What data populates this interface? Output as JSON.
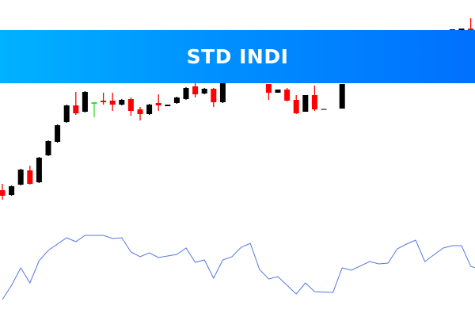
{
  "banner": {
    "title": "STD INDI"
  },
  "colors": {
    "bull": "#000000",
    "bear": "#ff0000",
    "doji": "#33dd33",
    "indicator": "#5577e6",
    "banner_start": "#00b2ff",
    "banner_end": "#0070ff"
  },
  "chart_data": [
    {
      "type": "candlestick",
      "title": "",
      "grid": false,
      "candles": [
        {
          "i": 0,
          "o": 160,
          "h": 168,
          "l": 148,
          "c": 153
        },
        {
          "i": 1,
          "o": 154,
          "h": 166,
          "l": 153,
          "c": 165
        },
        {
          "i": 2,
          "o": 167,
          "h": 187,
          "l": 166,
          "c": 186
        },
        {
          "i": 3,
          "o": 185,
          "h": 191,
          "l": 167,
          "c": 168
        },
        {
          "i": 4,
          "o": 170,
          "h": 202,
          "l": 169,
          "c": 201
        },
        {
          "i": 5,
          "o": 204,
          "h": 223,
          "l": 203,
          "c": 222
        },
        {
          "i": 6,
          "o": 221,
          "h": 243,
          "l": 220,
          "c": 242
        },
        {
          "i": 7,
          "o": 246,
          "h": 268,
          "l": 245,
          "c": 267
        },
        {
          "i": 8,
          "o": 267,
          "h": 284,
          "l": 255,
          "c": 257
        },
        {
          "i": 9,
          "o": 259,
          "h": 285,
          "l": 258,
          "c": 284
        },
        {
          "i": 10,
          "o": 271,
          "h": 271,
          "l": 252,
          "c": 271
        },
        {
          "i": 11,
          "o": 273,
          "h": 283,
          "l": 268,
          "c": 272
        },
        {
          "i": 12,
          "o": 273,
          "h": 283,
          "l": 260,
          "c": 268
        },
        {
          "i": 13,
          "o": 268,
          "h": 275,
          "l": 267,
          "c": 274
        },
        {
          "i": 14,
          "o": 275,
          "h": 277,
          "l": 254,
          "c": 260
        },
        {
          "i": 15,
          "o": 262,
          "h": 265,
          "l": 248,
          "c": 256
        },
        {
          "i": 16,
          "o": 256,
          "h": 269,
          "l": 255,
          "c": 268
        },
        {
          "i": 17,
          "o": 270,
          "h": 281,
          "l": 260,
          "c": 267
        },
        {
          "i": 18,
          "o": 266,
          "h": 268,
          "l": 266,
          "c": 268
        },
        {
          "i": 19,
          "o": 270,
          "h": 278,
          "l": 269,
          "c": 277
        },
        {
          "i": 20,
          "o": 275,
          "h": 290,
          "l": 274,
          "c": 289
        },
        {
          "i": 21,
          "o": 291,
          "h": 295,
          "l": 277,
          "c": 281
        },
        {
          "i": 22,
          "o": 282,
          "h": 289,
          "l": 281,
          "c": 288
        },
        {
          "i": 23,
          "o": 288,
          "h": 289,
          "l": 265,
          "c": 271
        },
        {
          "i": 24,
          "o": 271,
          "h": 296,
          "l": 270,
          "c": 295
        },
        {
          "i": 29,
          "o": 294,
          "h": 294,
          "l": 274,
          "c": 283
        },
        {
          "i": 30,
          "o": 283,
          "h": 287,
          "l": 283,
          "c": 287
        },
        {
          "i": 31,
          "o": 287,
          "h": 289,
          "l": 272,
          "c": 273
        },
        {
          "i": 32,
          "o": 274,
          "h": 280,
          "l": 256,
          "c": 257
        },
        {
          "i": 33,
          "o": 259,
          "h": 280,
          "l": 259,
          "c": 280
        },
        {
          "i": 34,
          "o": 280,
          "h": 292,
          "l": 260,
          "c": 262
        },
        {
          "i": 35,
          "o": 263,
          "h": 263,
          "l": 263,
          "c": 263
        },
        {
          "i": 37,
          "o": 263,
          "h": 294,
          "l": 263,
          "c": 294
        },
        {
          "i": 49,
          "o": 363,
          "h": 363,
          "l": 363,
          "c": 363
        },
        {
          "i": 50,
          "o": 364,
          "h": 364,
          "l": 364,
          "c": 364
        },
        {
          "i": 51,
          "o": 364,
          "h": 377,
          "l": 360,
          "c": 360
        }
      ]
    },
    {
      "type": "line",
      "title": "",
      "grid": false,
      "series": [
        {
          "points": [
            [
              0,
              22
            ],
            [
              1,
              40
            ],
            [
              2,
              62
            ],
            [
              3,
              43
            ],
            [
              4,
              71
            ],
            [
              5,
              84
            ],
            [
              7,
              100
            ],
            [
              8,
              95
            ],
            [
              9,
              103
            ],
            [
              11,
              103
            ],
            [
              12,
              99
            ],
            [
              13,
              100
            ],
            [
              14,
              82
            ],
            [
              15,
              76
            ],
            [
              16,
              81
            ],
            [
              17,
              75
            ],
            [
              19,
              79
            ],
            [
              20,
              87
            ],
            [
              21,
              69
            ],
            [
              22,
              72
            ],
            [
              23,
              49
            ],
            [
              24,
              72
            ],
            [
              25,
              76
            ],
            [
              26,
              88
            ],
            [
              27,
              93
            ],
            [
              28,
              60
            ],
            [
              29,
              48
            ],
            [
              30,
              51
            ],
            [
              32,
              29
            ],
            [
              33,
              43
            ],
            [
              34,
              32
            ],
            [
              36,
              31
            ],
            [
              37,
              62
            ],
            [
              38,
              59
            ],
            [
              40,
              70
            ],
            [
              41,
              67
            ],
            [
              42,
              68
            ],
            [
              43,
              86
            ],
            [
              44,
              92
            ],
            [
              45,
              97
            ],
            [
              46,
              70
            ],
            [
              48,
              87
            ],
            [
              49,
              90
            ],
            [
              50,
              90
            ],
            [
              51,
              64
            ],
            [
              52,
              60
            ]
          ]
        }
      ]
    }
  ]
}
